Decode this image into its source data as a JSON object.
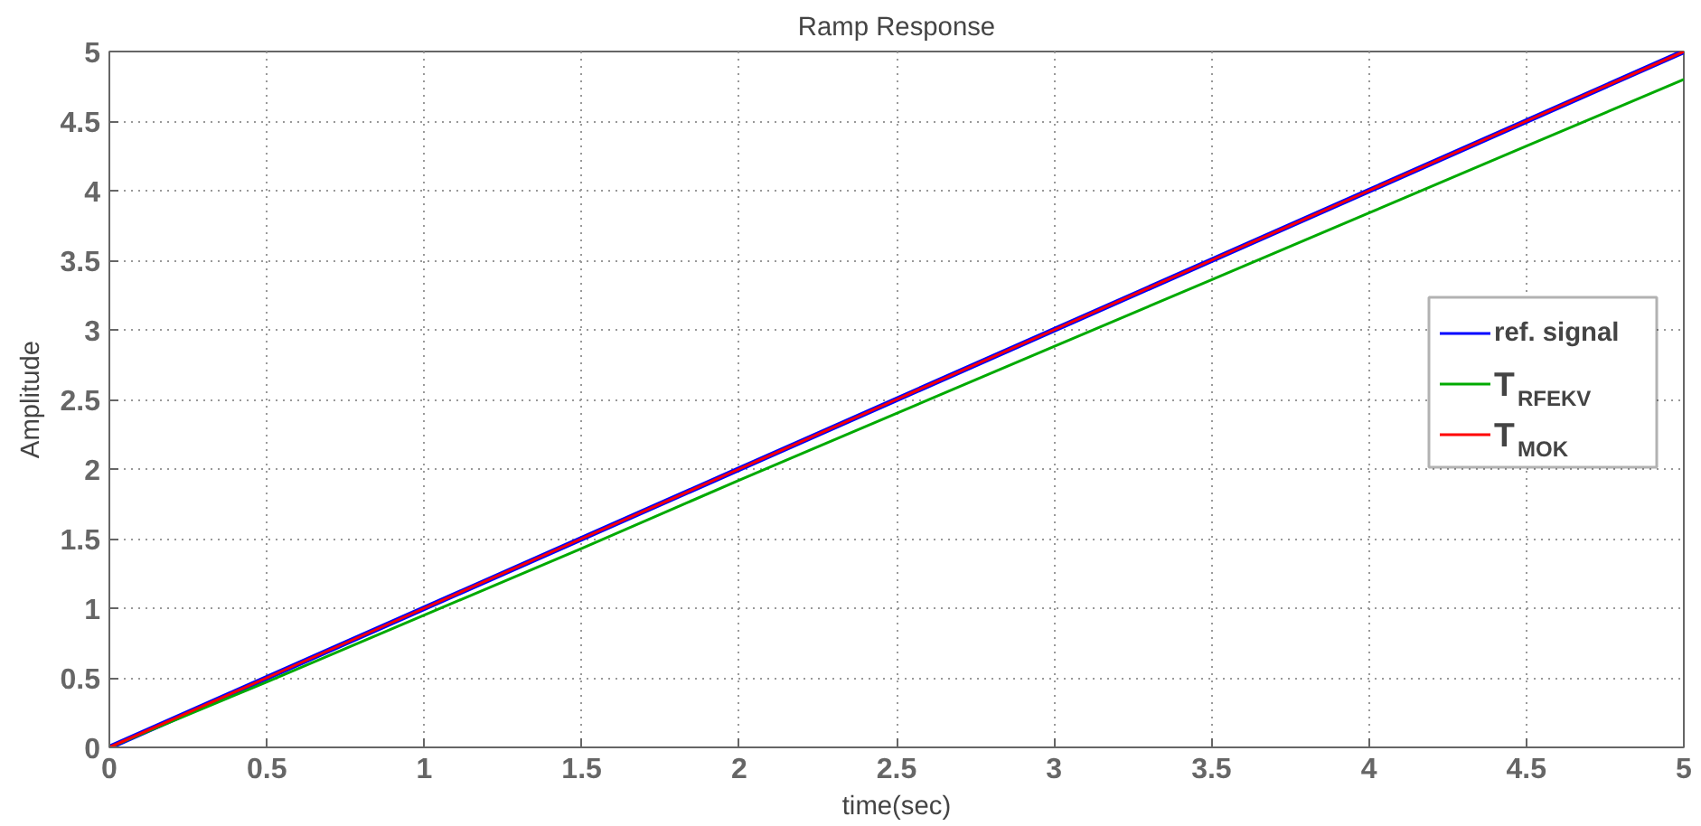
{
  "chart_data": {
    "type": "line",
    "title": "Ramp Response",
    "xlabel": "time(sec)",
    "ylabel": "Amplitude",
    "x": [
      0,
      0.5,
      1,
      1.5,
      2,
      2.5,
      3,
      3.5,
      4,
      4.5,
      5
    ],
    "series": [
      {
        "name": "ref. signal",
        "color": "#0000ff",
        "values": [
          0,
          0.5,
          1,
          1.5,
          2,
          2.5,
          3,
          3.5,
          4,
          4.5,
          5
        ]
      },
      {
        "name": "T$_{RFEKV}$",
        "color": "#00aa00",
        "values": [
          0,
          0.47,
          0.95,
          1.43,
          1.92,
          2.4,
          2.88,
          3.36,
          3.84,
          4.32,
          4.8
        ]
      },
      {
        "name": "T$_{MOK}$",
        "color": "#ff0000",
        "values": [
          0,
          0.5,
          1,
          1.5,
          2,
          2.5,
          3,
          3.5,
          4,
          4.5,
          5
        ]
      }
    ],
    "xlim": [
      0,
      5
    ],
    "ylim": [
      0,
      5
    ],
    "xticks": [
      0,
      0.5,
      1,
      1.5,
      2,
      2.5,
      3,
      3.5,
      4,
      4.5,
      5
    ],
    "yticks": [
      0,
      0.5,
      1,
      1.5,
      2,
      2.5,
      3,
      3.5,
      4,
      4.5,
      5
    ],
    "grid": true,
    "legend": "right",
    "line_style": "solid"
  }
}
